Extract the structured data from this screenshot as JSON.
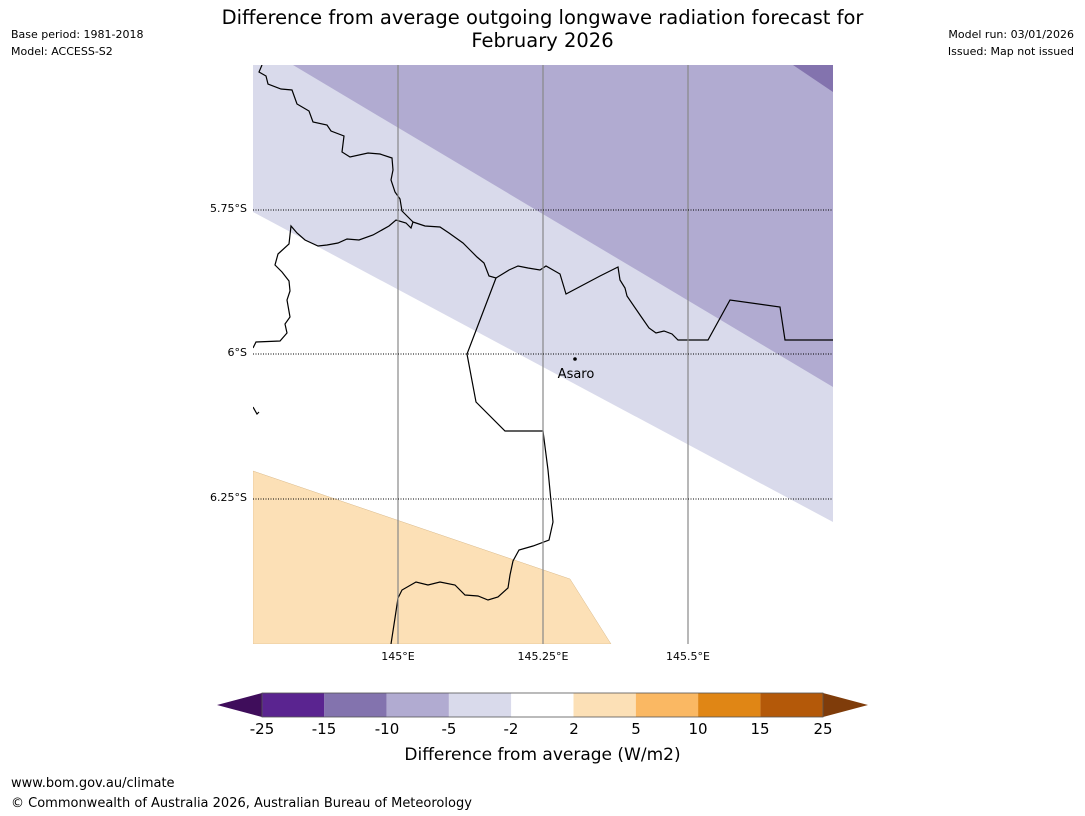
{
  "header": {
    "title_line1": "Difference from average outgoing longwave radiation forecast for",
    "title_line2": "February 2026",
    "base_period": "Base period: 1981-2018",
    "model": "Model: ACCESS-S2",
    "model_run": "Model run: 03/01/2026",
    "issued": "Issued: Map not issued"
  },
  "map": {
    "lat_labels": [
      "5.75°S",
      "6°S",
      "6.25°S"
    ],
    "lon_labels": [
      "145°E",
      "145.25°E",
      "145.5°E"
    ],
    "place": {
      "name": "Asaro",
      "lat": -6.01,
      "lon": 145.3
    }
  },
  "colorbar": {
    "ticks": [
      "-25",
      "-15",
      "-10",
      "-5",
      "-2",
      "2",
      "5",
      "10",
      "15",
      "25"
    ],
    "colors": [
      "#3f0d5b",
      "#5a2490",
      "#8373ae",
      "#b1abd1",
      "#d9daeb",
      "#ffffff",
      "#fce0b6",
      "#fab863",
      "#e08615",
      "#b45909",
      "#7f3c0a"
    ],
    "label": "Difference from average (W/m2)"
  },
  "footer": {
    "url": "www.bom.gov.au/climate",
    "copyright": "© Commonwealth of Australia 2026, Australian Bureau of Meteorology"
  }
}
